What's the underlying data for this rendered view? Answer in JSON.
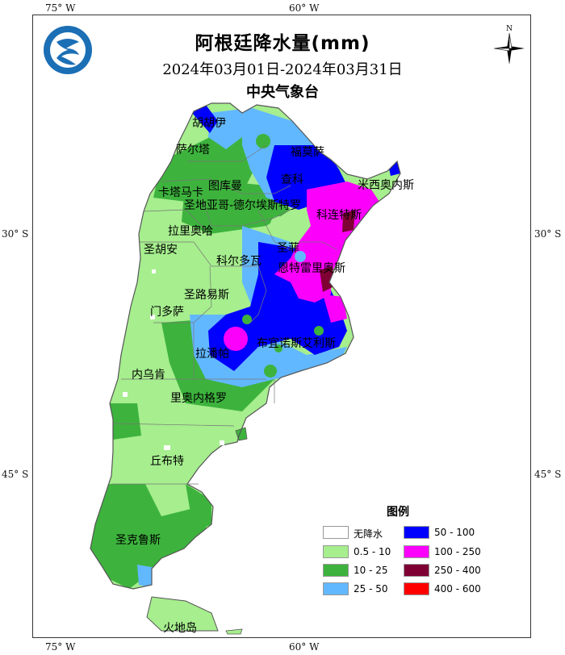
{
  "header": {
    "title": "阿根廷降水量(mm)",
    "date_range": "2024年03月01日-2024年03月31日",
    "agency": "中央气象台"
  },
  "axes": {
    "top_left": "75° W",
    "top_right": "60° W",
    "bottom_left": "75° W",
    "bottom_right": "60° W",
    "left_upper": "30° S",
    "left_lower": "45° S",
    "right_upper": "30° S",
    "right_lower": "45° S"
  },
  "north_label": "N",
  "places": {
    "jujuy": "胡胡伊",
    "salta": "萨尔塔",
    "formosa": "福莫萨",
    "chaco": "查科",
    "tucuman": "图库曼",
    "misiones": "米西奥内斯",
    "catamarca": "卡塔马卡",
    "santiago": "圣地亚哥-德尔埃斯特罗",
    "corrientes": "科连特斯",
    "larioja": "拉里奥哈",
    "santafe": "圣菲",
    "sanjuan": "圣胡安",
    "cordoba": "科尔多瓦",
    "entrerios": "恩特雷里奥斯",
    "sanluis": "圣路易斯",
    "mendoza": "门多萨",
    "buenosaires": "布宜诺斯艾利斯",
    "lapampa": "拉潘帕",
    "neuquen": "内乌肯",
    "rionegro": "里奥内格罗",
    "chubut": "丘布特",
    "santacruz": "圣克鲁斯",
    "tierradelfuego": "火地岛"
  },
  "legend": {
    "title": "图例",
    "items": [
      {
        "label": "无降水",
        "color": "#ffffff"
      },
      {
        "label": "0.5 - 10",
        "color": "#a6ee8e"
      },
      {
        "label": "10 - 25",
        "color": "#3db33d"
      },
      {
        "label": "25 - 50",
        "color": "#62b8ff"
      },
      {
        "label": "50 - 100",
        "color": "#0000fe"
      },
      {
        "label": "100 - 250",
        "color": "#fb00fb"
      },
      {
        "label": "250 - 400",
        "color": "#7f0033"
      },
      {
        "label": "400 - 600",
        "color": "#fe0000"
      }
    ]
  }
}
